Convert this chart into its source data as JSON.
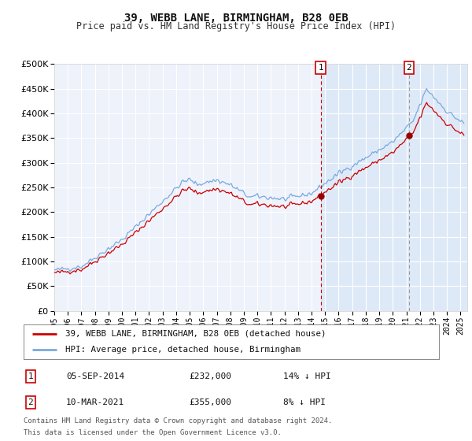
{
  "title": "39, WEBB LANE, BIRMINGHAM, B28 0EB",
  "subtitle": "Price paid vs. HM Land Registry's House Price Index (HPI)",
  "ylim": [
    0,
    500000
  ],
  "yticks": [
    0,
    50000,
    100000,
    150000,
    200000,
    250000,
    300000,
    350000,
    400000,
    450000,
    500000
  ],
  "xlim_start": 1995.0,
  "xlim_end": 2025.5,
  "background_color": "#ffffff",
  "plot_bg_color": "#eef2fb",
  "grid_color": "#ffffff",
  "hpi_color": "#7aaadd",
  "price_color": "#cc0000",
  "marker_color": "#990000",
  "vline1_color": "#cc0000",
  "vline2_color": "#999999",
  "span_color": "#dde8f8",
  "vline1_x": 2014.67,
  "vline2_x": 2021.19,
  "sale1_year": 2014.67,
  "sale1_price": 232000,
  "sale2_year": 2021.19,
  "sale2_price": 355000,
  "sale1_date": "05-SEP-2014",
  "sale1_price_str": "£232,000",
  "sale1_note": "14% ↓ HPI",
  "sale2_date": "10-MAR-2021",
  "sale2_price_str": "£355,000",
  "sale2_note": "8% ↓ HPI",
  "legend_label1": "39, WEBB LANE, BIRMINGHAM, B28 0EB (detached house)",
  "legend_label2": "HPI: Average price, detached house, Birmingham",
  "footer1": "Contains HM Land Registry data © Crown copyright and database right 2024.",
  "footer2": "This data is licensed under the Open Government Licence v3.0."
}
